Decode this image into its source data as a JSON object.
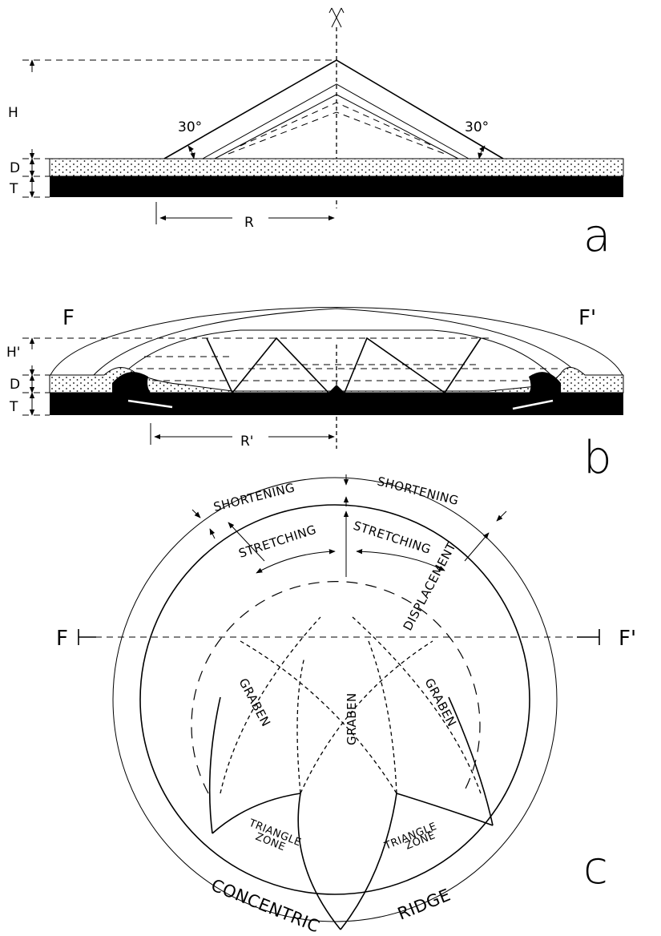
{
  "panel_a": {
    "label": "a",
    "height": "H",
    "thickness_d": "D",
    "thickness_t": "T",
    "radius": "R",
    "angle_left": "30°",
    "angle_right": "30°"
  },
  "panel_b": {
    "label": "b",
    "section_left": "F",
    "section_right": "F'",
    "height": "H'",
    "thickness_d": "D",
    "thickness_t": "T",
    "radius": "R'"
  },
  "panel_c": {
    "label": "c",
    "shortening": [
      "SHORTENING",
      "SHORTENING"
    ],
    "stretching": [
      "STRETCHING",
      "STRETCHING"
    ],
    "displacement": "DISPLACEMENT",
    "graben": [
      "GRABEN",
      "GRABEN",
      "GRABEN"
    ],
    "triangle_zone": [
      [
        "TRIANGLE",
        "ZONE"
      ],
      [
        "TRIANGLE",
        "ZONE"
      ]
    ],
    "ridge": [
      "CONCENTRIC",
      "RIDGE"
    ],
    "section_left": "F",
    "section_right": "F'"
  }
}
